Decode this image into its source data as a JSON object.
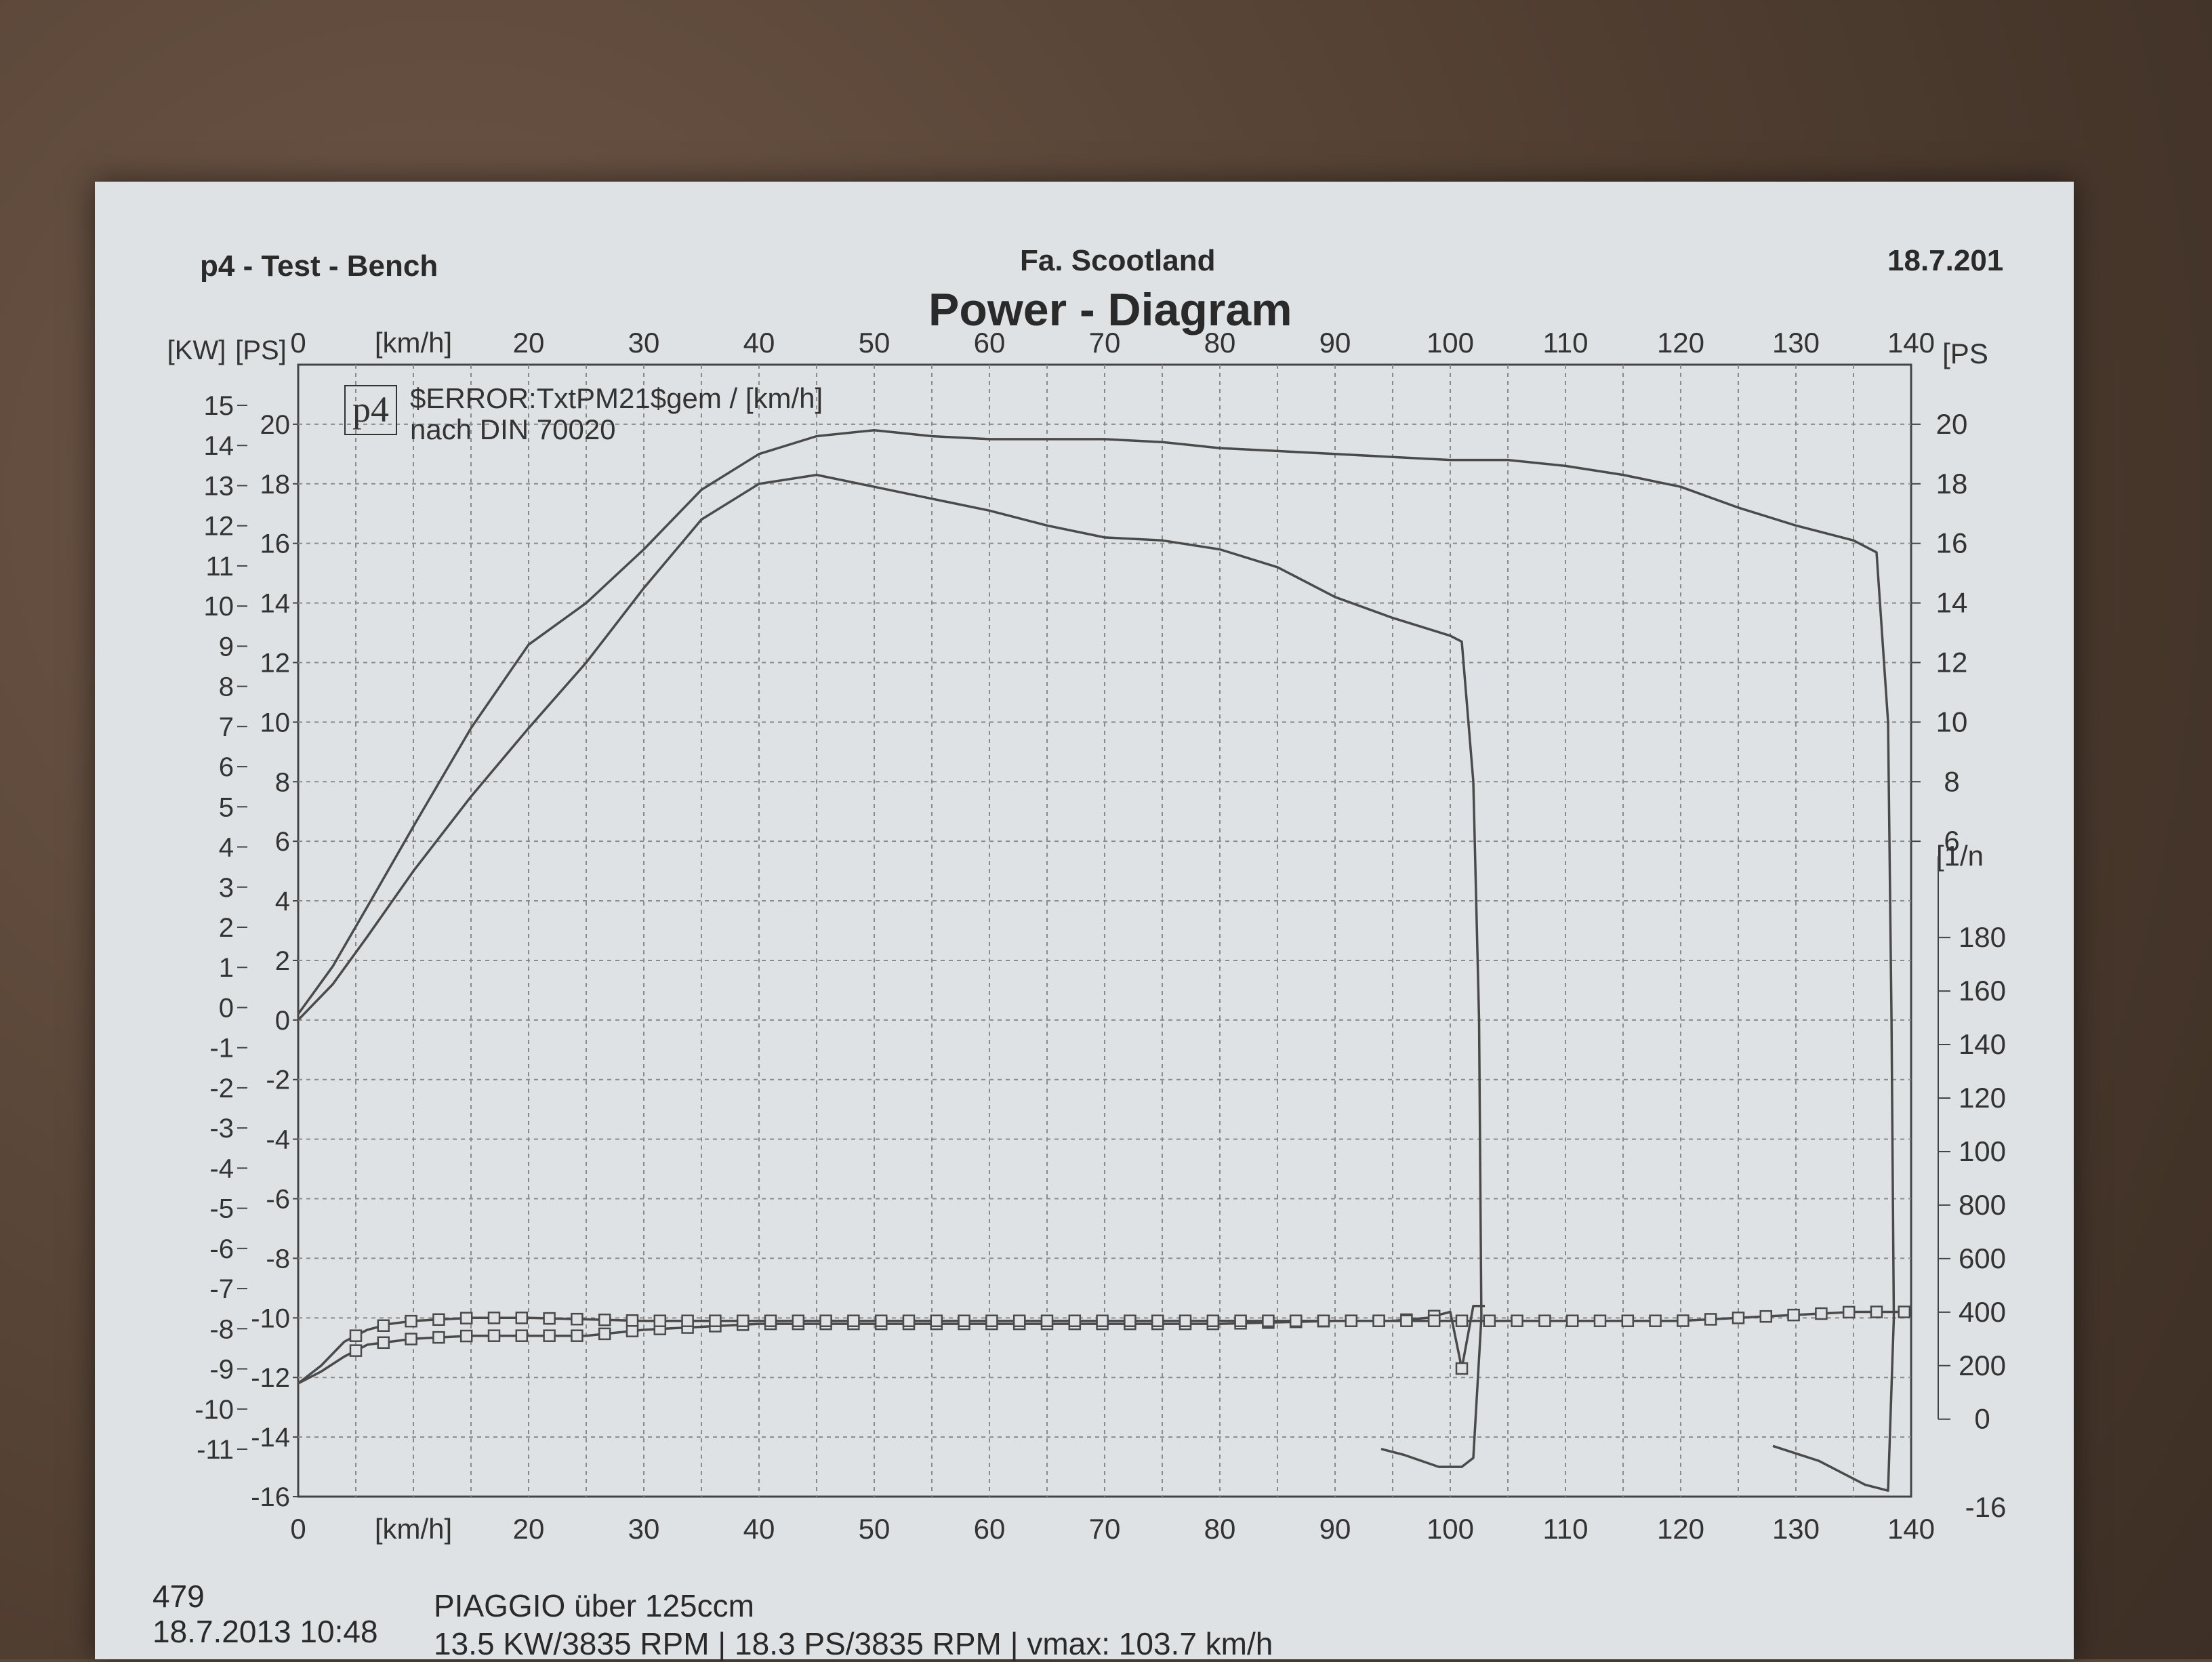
{
  "header": {
    "left": "p4 - Test - Bench",
    "center": "Fa. Scootland",
    "right": "18.7.201",
    "title": "Power - Diagram",
    "logo": "p4",
    "legend_line1": "$ERROR:TxtPM21$gem / [km/h]",
    "legend_line2": "nach DIN 70020"
  },
  "footer": {
    "id": "479",
    "date_time": "18.7.2013  10:48",
    "vehicle": "PIAGGIO über 125ccm",
    "summary": "13.5 KW/3835 RPM  |  18.3 PS/3835 RPM  |  vmax: 103.7 km/h"
  },
  "chart_data": {
    "type": "line",
    "title": "Power - Diagram",
    "xlabel": "[km/h]",
    "x_ticks": [
      0,
      "[km/h]",
      20,
      30,
      40,
      50,
      60,
      70,
      80,
      90,
      100,
      110,
      120,
      130,
      140
    ],
    "xlim": [
      0,
      140
    ],
    "y_left_kw_label": "[KW]",
    "y_left_ps_label": "[PS]",
    "y_right_ps_label": "[PS",
    "y_right_rpm_label": "[1/n",
    "kw_ticks": [
      15,
      14,
      13,
      12,
      11,
      10,
      9,
      8,
      7,
      6,
      5,
      4,
      3,
      2,
      1,
      0,
      -1,
      -2,
      -3,
      -4,
      -5,
      -6,
      -7,
      -8,
      -9,
      -10,
      -11
    ],
    "ps_ticks": [
      20,
      18,
      16,
      14,
      12,
      10,
      8,
      6,
      4,
      2,
      0,
      -2,
      -4,
      -6,
      -8,
      -10,
      -12,
      -14,
      -16
    ],
    "right_ps_ticks": [
      20,
      18,
      16,
      14,
      12,
      10,
      8,
      6
    ],
    "rpm_ticks": [
      180,
      160,
      140,
      120,
      100,
      800,
      600,
      400,
      200,
      0
    ],
    "bottom_right_label": "-16",
    "ylim_ps": [
      -16,
      22
    ],
    "grid": true,
    "series": [
      {
        "role": "power_run_a",
        "x": [
          0,
          3,
          6,
          10,
          15,
          20,
          25,
          30,
          35,
          40,
          45,
          50,
          55,
          60,
          65,
          70,
          75,
          80,
          85,
          90,
          95,
          100,
          101,
          102,
          102.5,
          102.7,
          102,
          101,
          99,
          96,
          94
        ],
        "y": [
          0,
          1.2,
          2.8,
          5.0,
          7.5,
          9.8,
          12.0,
          14.5,
          16.8,
          18.0,
          18.3,
          17.9,
          17.5,
          17.1,
          16.6,
          16.2,
          16.1,
          15.8,
          15.2,
          14.2,
          13.5,
          12.9,
          12.7,
          8,
          0,
          -10,
          -14.7,
          -15.0,
          -15.0,
          -14.6,
          -14.4
        ]
      },
      {
        "role": "power_run_b",
        "x": [
          0,
          3,
          6,
          10,
          15,
          20,
          25,
          30,
          35,
          40,
          45,
          50,
          55,
          60,
          65,
          70,
          75,
          80,
          85,
          90,
          95,
          100,
          105,
          110,
          115,
          120,
          125,
          130,
          135,
          137,
          138,
          138.3,
          138.5,
          138,
          136,
          132,
          128
        ],
        "y": [
          0.2,
          1.8,
          3.8,
          6.5,
          9.8,
          12.6,
          14.0,
          15.8,
          17.8,
          19.0,
          19.6,
          19.8,
          19.6,
          19.5,
          19.5,
          19.5,
          19.4,
          19.2,
          19.1,
          19.0,
          18.9,
          18.8,
          18.8,
          18.6,
          18.3,
          17.9,
          17.2,
          16.6,
          16.1,
          15.7,
          10,
          0,
          -10,
          -15.8,
          -15.6,
          -14.8,
          -14.3
        ]
      },
      {
        "role": "rpm_run_a",
        "x": [
          0,
          2,
          4,
          6,
          8,
          10,
          15,
          20,
          25,
          30,
          35,
          40,
          50,
          60,
          70,
          80,
          90,
          95,
          98,
          100,
          101,
          102,
          103
        ],
        "y": [
          -12.2,
          -11.8,
          -11.3,
          -10.9,
          -10.8,
          -10.7,
          -10.6,
          -10.6,
          -10.6,
          -10.4,
          -10.3,
          -10.2,
          -10.2,
          -10.2,
          -10.2,
          -10.2,
          -10.1,
          -10.1,
          -10.0,
          -9.8,
          -11.7,
          -9.6,
          -9.6
        ],
        "markers": "square"
      },
      {
        "role": "rpm_run_b",
        "x": [
          0,
          2,
          4,
          6,
          8,
          10,
          15,
          20,
          30,
          40,
          50,
          60,
          70,
          80,
          90,
          100,
          110,
          120,
          125,
          130,
          135,
          140
        ],
        "y": [
          -12.2,
          -11.6,
          -10.8,
          -10.4,
          -10.2,
          -10.1,
          -10.0,
          -10.0,
          -10.1,
          -10.1,
          -10.1,
          -10.1,
          -10.1,
          -10.1,
          -10.1,
          -10.1,
          -10.1,
          -10.1,
          -10.0,
          -9.9,
          -9.8,
          -9.8
        ],
        "markers": "square"
      }
    ]
  }
}
